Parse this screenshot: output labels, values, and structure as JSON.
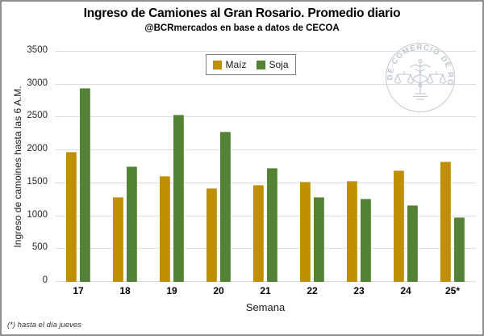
{
  "watermark_text": "BOLSA DE COMERCIO DE ROSARIO",
  "chart_data": {
    "type": "bar",
    "title": "Ingreso de Camiones al Gran Rosario. Promedio diario",
    "subtitle": "@BCRmercados en base a datos de CECOA",
    "xlabel": "Semana",
    "ylabel": "Ingreso de camoines hasta las 6 A.M.",
    "footnote": "(*) hasta el día jueves",
    "categories": [
      "17",
      "18",
      "19",
      "20",
      "21",
      "22",
      "23",
      "24",
      "25*"
    ],
    "series": [
      {
        "name": "Maíz",
        "color": "#BF8F00",
        "values": [
          1980,
          1290,
          1610,
          1430,
          1470,
          1520,
          1530,
          1690,
          1830
        ]
      },
      {
        "name": "Soja",
        "color": "#548235",
        "values": [
          2950,
          1760,
          2540,
          2280,
          1730,
          1290,
          1260,
          1170,
          980
        ]
      }
    ],
    "ylim": [
      0,
      3500
    ],
    "yticks": [
      0,
      500,
      1000,
      1500,
      2000,
      2500,
      3000,
      3500
    ],
    "grid": true,
    "legend_position": "top-center"
  },
  "colors": {
    "gridline": "#DEDEDE",
    "frame_border": "#8F8F8F",
    "watermark": "#B6BDCA",
    "maiz": "#BF8F00",
    "soja": "#548235"
  }
}
